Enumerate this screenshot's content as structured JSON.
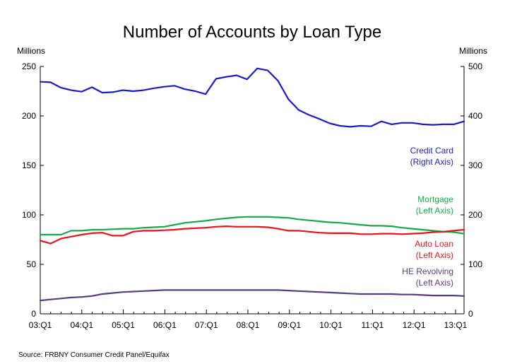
{
  "chart_data": {
    "type": "line",
    "title": "Number of Accounts by Loan Type",
    "left_axis": {
      "unit_label": "Millions",
      "ylim": [
        0,
        250
      ],
      "ticks": [
        0,
        50,
        100,
        150,
        200,
        250
      ]
    },
    "right_axis": {
      "unit_label": "Millions",
      "ylim": [
        0,
        500
      ],
      "ticks": [
        0,
        100,
        200,
        300,
        400,
        500
      ]
    },
    "x_tick_labels": [
      "03:Q1",
      "04:Q1",
      "05:Q1",
      "06:Q1",
      "07:Q1",
      "08:Q1",
      "09:Q1",
      "10:Q1",
      "11:Q1",
      "12:Q1",
      "13:Q1"
    ],
    "grid": false,
    "source": "Source: FRBNY Consumer Credit Panel/Equifax",
    "series": [
      {
        "name": "Credit Card",
        "label_lines": [
          "Credit Card",
          "(Right Axis)"
        ],
        "axis": "right",
        "color": "#1c1cc4",
        "values": [
          469,
          468,
          457,
          452,
          449,
          458,
          447,
          448,
          452,
          450,
          452,
          456,
          459,
          461,
          454,
          450,
          444,
          475,
          479,
          482,
          474,
          496,
          492,
          471,
          434,
          412,
          402,
          394,
          385,
          380,
          378,
          380,
          379,
          389,
          383,
          386,
          386,
          383,
          382,
          383,
          383,
          389
        ]
      },
      {
        "name": "Mortgage",
        "label_lines": [
          "Mortgage",
          "(Left Axis)"
        ],
        "axis": "left",
        "color": "#18a84a",
        "values": [
          80,
          80,
          80,
          84,
          84,
          85,
          85,
          85.5,
          86,
          86,
          87,
          87.5,
          88,
          90,
          92,
          93,
          94,
          95.5,
          96.5,
          97.5,
          98,
          98,
          98,
          97.5,
          97,
          95.5,
          94.5,
          93.5,
          92.5,
          92,
          91,
          90,
          89,
          89,
          88.5,
          87,
          86,
          85,
          84,
          83,
          82.5,
          81
        ]
      },
      {
        "name": "Auto Loan",
        "label_lines": [
          "Auto Loan",
          "(Left Axis)"
        ],
        "axis": "left",
        "color": "#e8141e",
        "values": [
          74,
          71,
          76,
          78,
          80,
          81.5,
          82,
          79,
          79,
          83,
          84,
          84,
          84.5,
          85,
          86,
          86.5,
          87,
          88,
          88.5,
          88,
          88,
          88,
          87.5,
          86,
          84,
          84,
          83,
          82,
          81.5,
          81.5,
          81.5,
          80.5,
          80.5,
          81,
          81,
          80.5,
          81,
          81.5,
          82.5,
          83,
          84,
          85
        ]
      },
      {
        "name": "HE Revolving",
        "label_lines": [
          "HE Revolving",
          "(Left Axis)"
        ],
        "axis": "left",
        "color": "#5a3c7e",
        "values": [
          13.5,
          14.5,
          15.5,
          16.5,
          17,
          18,
          20,
          21,
          22,
          22.5,
          23,
          23.5,
          24,
          24,
          24,
          24,
          24,
          24,
          24,
          24,
          24,
          24,
          24,
          24,
          23.5,
          23,
          22.5,
          22,
          21.5,
          21,
          20.5,
          20,
          20,
          20,
          20,
          19.5,
          19.5,
          19,
          18.5,
          18.5,
          18.5,
          18
        ]
      }
    ]
  }
}
